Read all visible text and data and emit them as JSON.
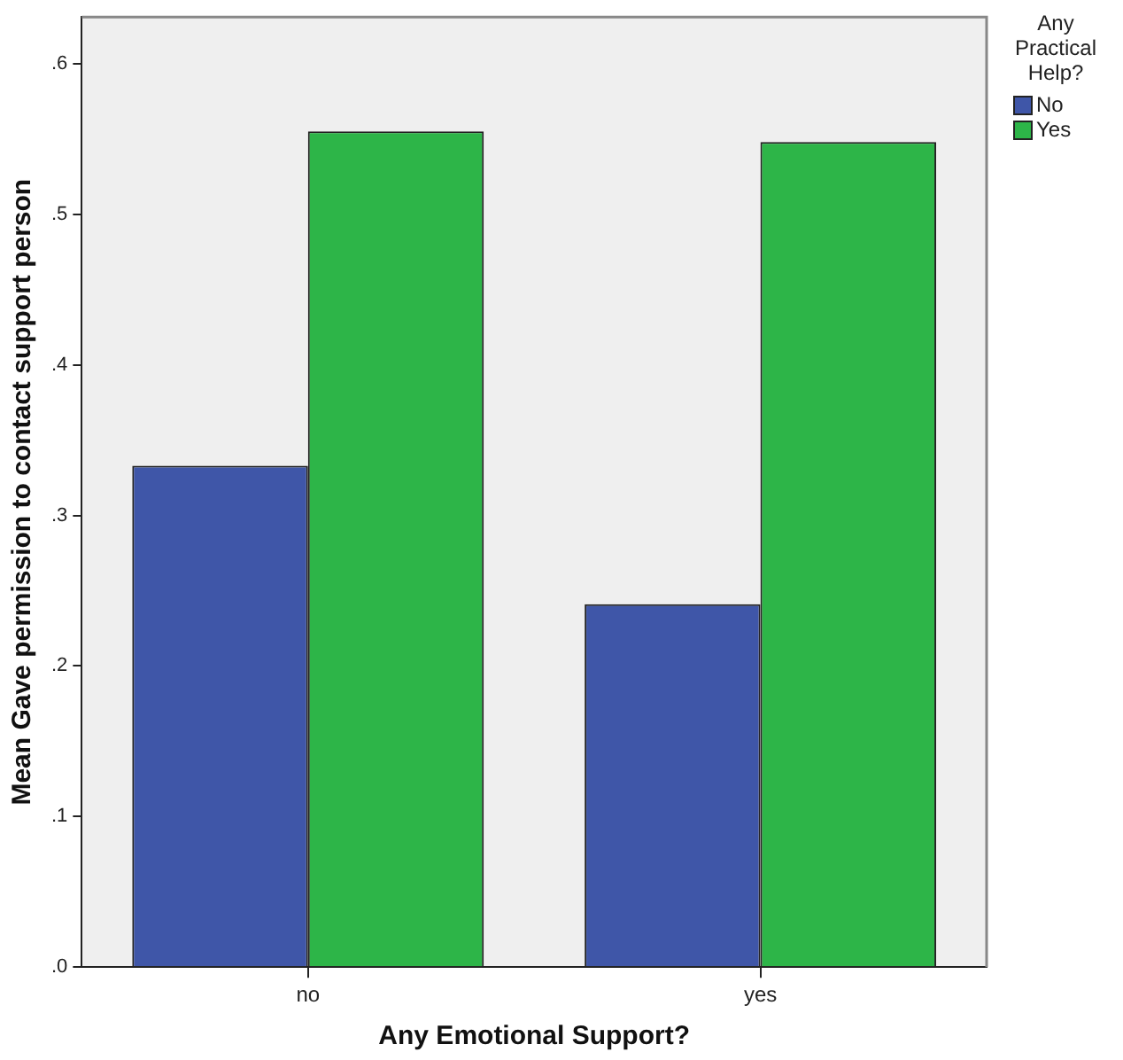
{
  "chart_data": {
    "type": "bar",
    "xlabel": "Any Emotional Support?",
    "ylabel": "Mean Gave permission to contact support person",
    "legend_title": "Any Practical Help?",
    "categories": [
      "no",
      "yes"
    ],
    "series": [
      {
        "name": "No",
        "color": "#3f56a8",
        "values": [
          0.333,
          0.241
        ]
      },
      {
        "name": "Yes",
        "color": "#2db548",
        "values": [
          0.555,
          0.548
        ]
      }
    ],
    "ylim": [
      0,
      0.631
    ],
    "yticks": [
      {
        "value": 0,
        "label": ".0"
      },
      {
        "value": 0.1,
        "label": ".1"
      },
      {
        "value": 0.2,
        "label": ".2"
      },
      {
        "value": 0.3,
        "label": ".3"
      },
      {
        "value": 0.4,
        "label": ".4"
      },
      {
        "value": 0.5,
        "label": ".5"
      },
      {
        "value": 0.6,
        "label": ".6"
      }
    ],
    "grid": false,
    "legend": "top right"
  }
}
